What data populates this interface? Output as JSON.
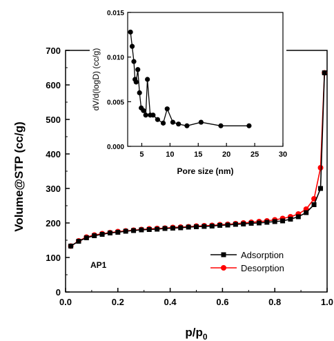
{
  "chart_data": [
    {
      "type": "line",
      "xlabel": "p/p",
      "xlabel_subscript": "0",
      "ylabel": "Volume@STP (cc/g)",
      "xlim": [
        0.0,
        1.0
      ],
      "ylim": [
        0,
        700
      ],
      "xticks": [
        "0.0",
        "0.2",
        "0.4",
        "0.6",
        "0.8",
        "1.0"
      ],
      "yticks": [
        "0",
        "100",
        "200",
        "300",
        "400",
        "500",
        "600",
        "700"
      ],
      "annotation": "AP1",
      "legend_position": "bottom-right",
      "series": [
        {
          "name": "Adsorption",
          "color": "#000000",
          "marker": "square",
          "x": [
            0.02,
            0.05,
            0.08,
            0.11,
            0.14,
            0.17,
            0.2,
            0.23,
            0.26,
            0.29,
            0.32,
            0.35,
            0.38,
            0.41,
            0.44,
            0.47,
            0.5,
            0.53,
            0.56,
            0.59,
            0.62,
            0.65,
            0.68,
            0.71,
            0.74,
            0.77,
            0.8,
            0.83,
            0.86,
            0.89,
            0.92,
            0.95,
            0.975,
            0.99
          ],
          "y": [
            133,
            147,
            157,
            163,
            167,
            171,
            173,
            176,
            178,
            180,
            181,
            182,
            184,
            185,
            186,
            188,
            189,
            190,
            191,
            193,
            194,
            196,
            197,
            199,
            200,
            202,
            204,
            206,
            211,
            218,
            230,
            253,
            300,
            635
          ]
        },
        {
          "name": "Desorption",
          "color": "#ff0000",
          "marker": "circle",
          "x": [
            0.02,
            0.05,
            0.08,
            0.11,
            0.14,
            0.17,
            0.2,
            0.23,
            0.26,
            0.29,
            0.32,
            0.35,
            0.38,
            0.41,
            0.44,
            0.47,
            0.5,
            0.53,
            0.56,
            0.59,
            0.62,
            0.65,
            0.68,
            0.71,
            0.74,
            0.77,
            0.8,
            0.83,
            0.86,
            0.89,
            0.92,
            0.95,
            0.975,
            0.99
          ],
          "y": [
            133,
            148,
            159,
            165,
            169,
            172,
            175,
            177,
            179,
            181,
            183,
            184,
            185,
            187,
            188,
            189,
            191,
            192,
            193,
            195,
            196,
            198,
            200,
            202,
            204,
            206,
            209,
            213,
            218,
            226,
            240,
            270,
            360,
            635
          ]
        }
      ]
    },
    {
      "type": "line",
      "xlabel": "Pore size (nm)",
      "ylabel": "dV/d(logD) (cc/g)",
      "xlim": [
        2.5,
        30
      ],
      "ylim": [
        0.0,
        0.015
      ],
      "xticks": [
        "5",
        "10",
        "15",
        "20",
        "25",
        "30"
      ],
      "yticks": [
        "0.000",
        "0.005",
        "0.010",
        "0.015"
      ],
      "series": [
        {
          "color": "#000000",
          "marker": "circle",
          "x": [
            3.0,
            3.3,
            3.6,
            3.8,
            4.0,
            4.3,
            4.6,
            4.9,
            5.3,
            5.7,
            6.0,
            6.5,
            7.0,
            7.8,
            8.8,
            9.5,
            10.5,
            11.5,
            13.0,
            15.5,
            19.0,
            24.0
          ],
          "y": [
            0.0128,
            0.0112,
            0.0095,
            0.0075,
            0.0072,
            0.0086,
            0.006,
            0.0043,
            0.004,
            0.0035,
            0.0075,
            0.0035,
            0.0035,
            0.003,
            0.0026,
            0.0042,
            0.0027,
            0.0025,
            0.0023,
            0.0027,
            0.0023,
            0.0023
          ]
        }
      ]
    }
  ]
}
